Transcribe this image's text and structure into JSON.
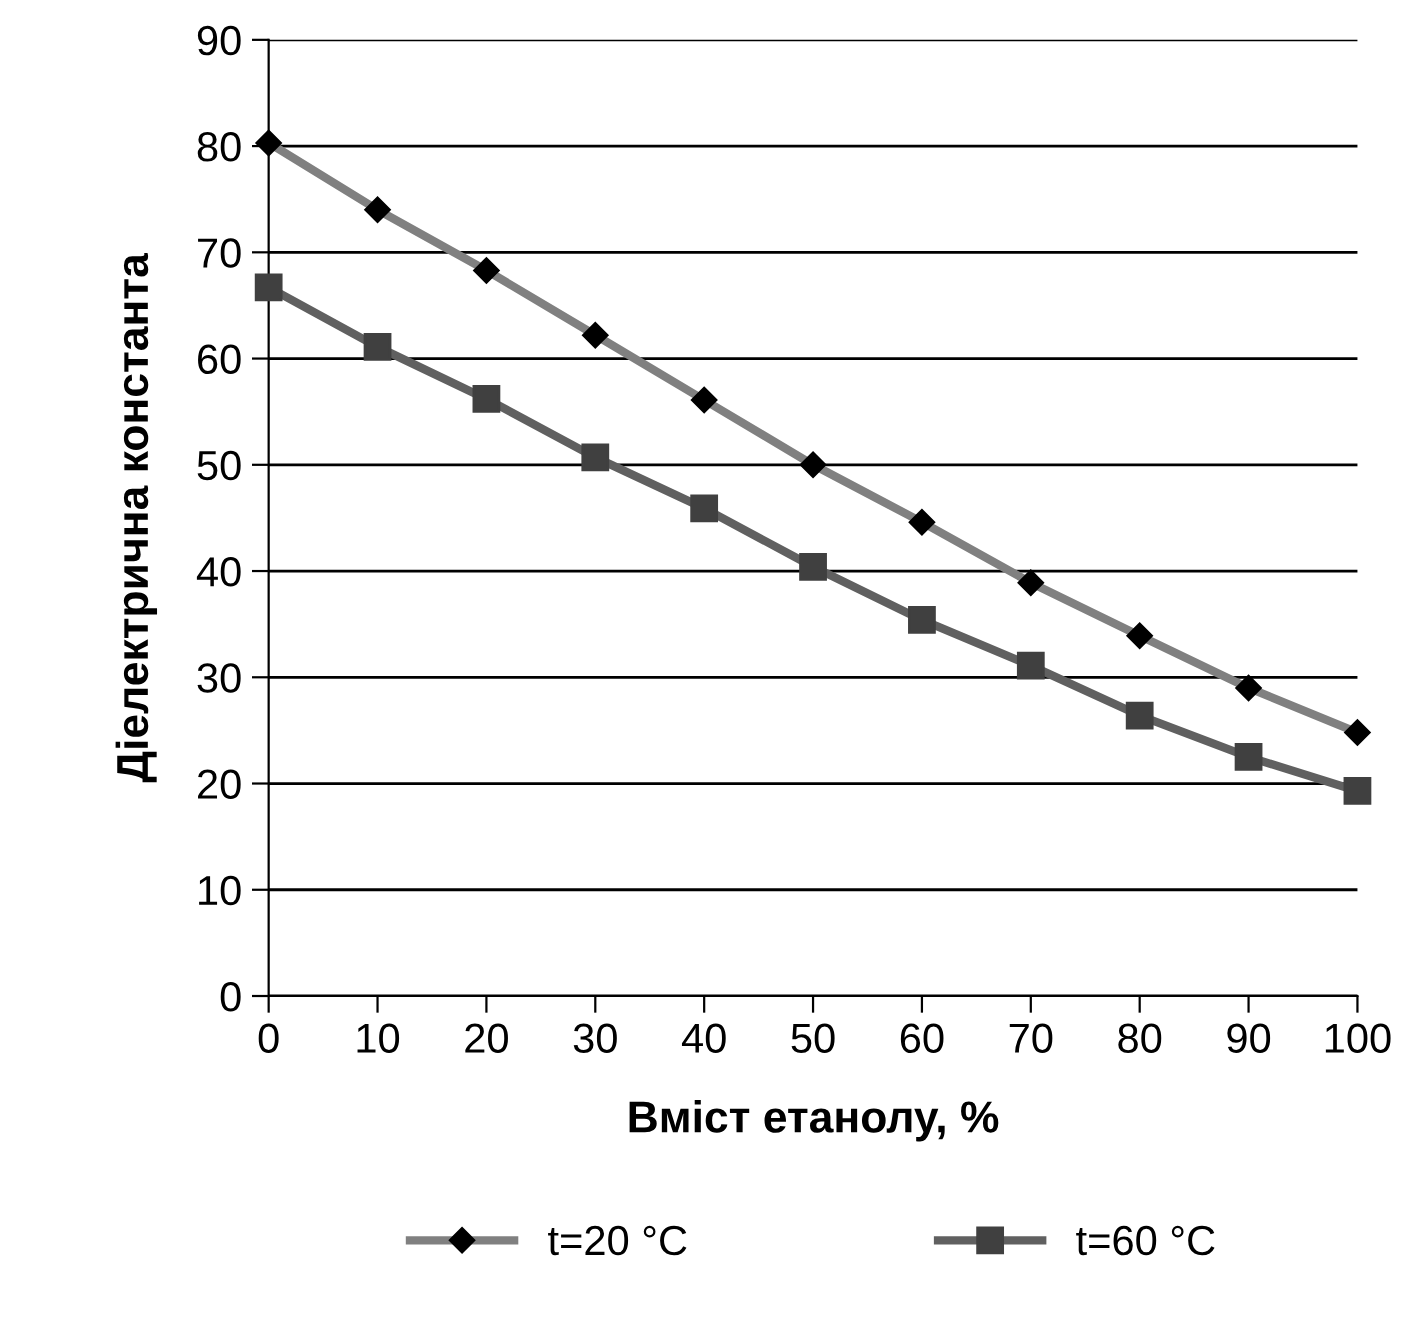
{
  "chart_data": {
    "type": "line",
    "xlabel": "Вміст етанолу, %",
    "ylabel": "Діелектрична константа",
    "x": [
      0,
      10,
      20,
      30,
      40,
      50,
      60,
      70,
      80,
      90,
      100
    ],
    "series": [
      {
        "name": "t=20 °C",
        "color": "#808080",
        "marker": "diamond",
        "values": [
          80.3,
          74.0,
          68.3,
          62.2,
          56.1,
          50.0,
          44.6,
          38.9,
          33.9,
          29.0,
          24.8
        ]
      },
      {
        "name": "t=60 °C",
        "color": "#606060",
        "marker": "square",
        "values": [
          66.7,
          61.1,
          56.2,
          50.7,
          45.9,
          40.4,
          35.4,
          31.1,
          26.4,
          22.5,
          19.3
        ]
      }
    ],
    "xlim": [
      0,
      100
    ],
    "xticks": [
      0,
      10,
      20,
      30,
      40,
      50,
      60,
      70,
      80,
      90,
      100
    ],
    "ylim": [
      0,
      90
    ],
    "yticks": [
      0,
      10,
      20,
      30,
      40,
      50,
      60,
      70,
      80,
      90
    ],
    "grid": "y",
    "legend": "bottom"
  }
}
